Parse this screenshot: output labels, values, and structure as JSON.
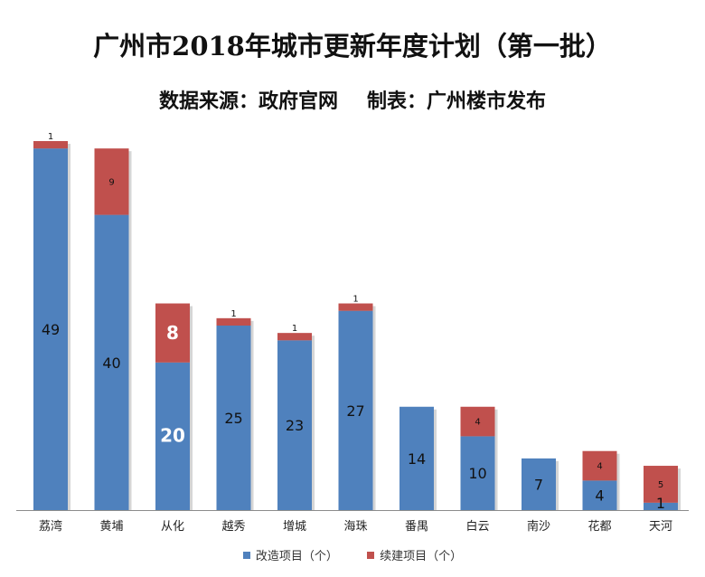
{
  "chart_data": {
    "type": "bar",
    "stacked": true,
    "title": "广州市2018年城市更新年度计划（第一批）",
    "subtitle_left": "数据来源：政府官网",
    "subtitle_right": "制表：广州楼市发布",
    "categories": [
      "荔湾",
      "黄埔",
      "从化",
      "越秀",
      "增城",
      "海珠",
      "番禺",
      "白云",
      "南沙",
      "花都",
      "天河"
    ],
    "series": [
      {
        "name": "改造项目（个）",
        "color": "#4f81bd",
        "values": [
          49,
          40,
          20,
          25,
          23,
          27,
          14,
          10,
          7,
          4,
          1
        ]
      },
      {
        "name": "续建项目（个）",
        "color": "#c0504d",
        "values": [
          1,
          9,
          8,
          1,
          1,
          1,
          0,
          4,
          0,
          4,
          5
        ]
      }
    ],
    "ylim": [
      0,
      50
    ],
    "legend_position": "bottom",
    "grid": false
  }
}
